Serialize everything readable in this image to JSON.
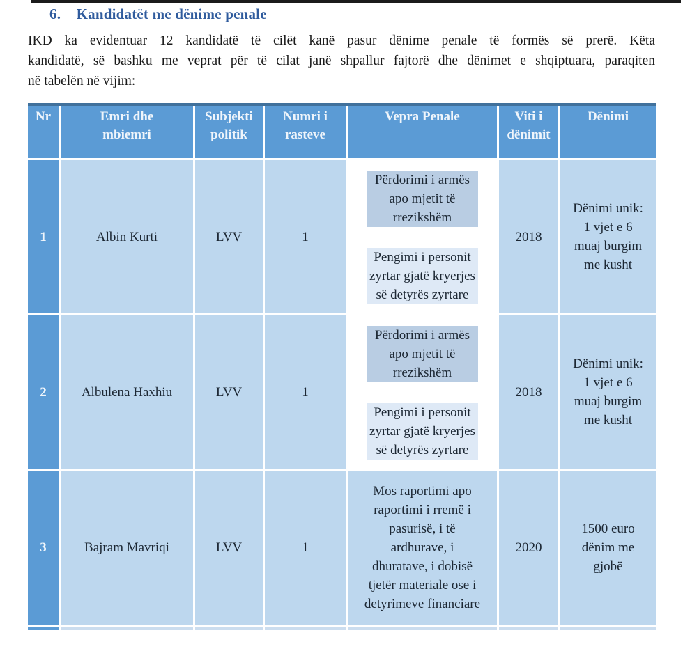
{
  "colors": {
    "dark_rule": "#1b1b1b",
    "tbl_top_border": "#41719C",
    "header_fill": "#5B9BD5",
    "cell_fill": "#BDD7EE",
    "subcell_top_fill": "#B9CDE3",
    "subcell_bottom_fill": "#DEE9F6",
    "partial_fill": "#CBDDEF",
    "heading_color": "#2F5B9D",
    "header_text": "#EFF5FB",
    "body_text": "#1A1A1A",
    "cell_text": "#1C2733"
  },
  "heading": {
    "number": "6.",
    "text": "Kandidatët me dënime penale"
  },
  "paragraph_lines": [
    "IKD ka evidentuar 12 kandidatë të cilët kanë pasur dënime penale të formës së prerë. Këta",
    "kandidatë, së bashku me veprat për të cilat janë shpallur fajtorë dhe dënimet e shqiptuara, paraqiten",
    "në tabelën në vijim:"
  ],
  "table": {
    "headers": [
      "Nr",
      "Emri dhe\nmbiemri",
      "Subjekti\npolitik",
      "Numri i\nrasteve",
      "Vepra Penale",
      "Viti i\ndënimit",
      "Dënimi"
    ],
    "rows": [
      {
        "nr": "1",
        "name": "Albin Kurti",
        "party": "LVV",
        "cases": "1",
        "offenses": [
          "Përdorimi i armës\napo mjetit të\nrrezikshëm",
          "Pengimi i personit\nzyrtar gjatë kryerjes\nsë detyrës zyrtare"
        ],
        "year": "2018",
        "sentence": "Dënimi unik:\n1 vjet e 6\nmuaj burgim\nme kusht"
      },
      {
        "nr": "2",
        "name": "Albulena Haxhiu",
        "party": "LVV",
        "cases": "1",
        "offenses": [
          "Përdorimi i armës\napo mjetit të\nrrezikshëm",
          "Pengimi i personit\nzyrtar gjatë kryerjes\nsë detyrës zyrtare"
        ],
        "year": "2018",
        "sentence": "Dënimi unik:\n1 vjet e 6\nmuaj burgim\nme kusht"
      },
      {
        "nr": "3",
        "name": "Bajram Mavriqi",
        "party": "LVV",
        "cases": "1",
        "offenses": [
          "Mos raportimi apo\nraportimi i rremë i\npasurisë, i të\nardhurave, i\ndhuratave, i dobisë\ntjetër materiale ose i\ndetyrimeve financiare"
        ],
        "year": "2020",
        "sentence": "1500 euro\ndënim me\ngjobë"
      }
    ]
  }
}
